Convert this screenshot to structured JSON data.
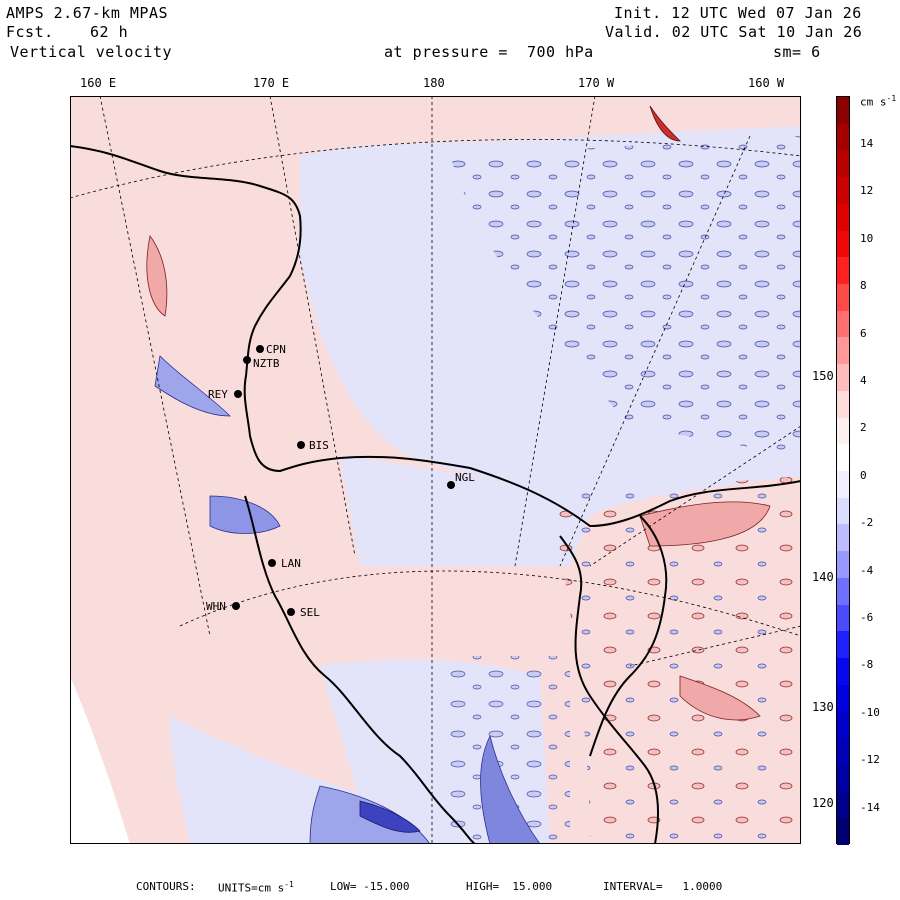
{
  "header": {
    "model": "AMPS 2.67-km MPAS",
    "fcst_label": "Fcst.",
    "fcst_value": "62 h",
    "variable": "Vertical velocity",
    "init": "Init. 12 UTC Wed 07 Jan 26",
    "valid": "Valid. 02 UTC Sat 10 Jan 26",
    "pressure_text": "at pressure =  700 hPa",
    "smoothing": "sm= 6"
  },
  "lon_labels": [
    "160 E",
    "170 E",
    "180",
    "170 W",
    "160 W"
  ],
  "lat_labels": [
    "150 W",
    "140 W",
    "130 W",
    "120 W"
  ],
  "colorbar": {
    "unit_label": "cm s",
    "unit_exp": "-1",
    "ticks": [
      "14",
      "12",
      "10",
      "8",
      "6",
      "4",
      "2",
      "0",
      "-2",
      "-4",
      "-6",
      "-8",
      "-10",
      "-12",
      "-14"
    ],
    "colors": [
      "#8b0000",
      "#a50000",
      "#b80000",
      "#cc0000",
      "#e00000",
      "#f00808",
      "#ff2020",
      "#ff4a4a",
      "#ff7070",
      "#ff9898",
      "#ffbcbc",
      "#ffdcdc",
      "#fff0f0",
      "#ffffff",
      "#f0f0ff",
      "#dcdcff",
      "#bcbcff",
      "#9898ff",
      "#7070ff",
      "#4a4aff",
      "#2020ff",
      "#0808f0",
      "#0000e0",
      "#0000cc",
      "#0000b8",
      "#0000a5",
      "#00008b",
      "#000070"
    ]
  },
  "stations": [
    {
      "id": "CPN"
    },
    {
      "id": "NZTB"
    },
    {
      "id": "REY"
    },
    {
      "id": "BIS"
    },
    {
      "id": "NGL"
    },
    {
      "id": "LAN"
    },
    {
      "id": "WHN"
    },
    {
      "id": "SEL"
    }
  ],
  "footer": {
    "contours": "CONTOURS:",
    "units": "UNITS=cm s",
    "units_exp": "-1",
    "low": "LOW= -15.000",
    "high": "HIGH=  15.000",
    "interval": "INTERVAL=   1.0000"
  },
  "palette": {
    "pos_light": "#f9dcdc",
    "neg_light": "#e3e4f9",
    "pos_mid": "#f0a8a8",
    "neg_mid": "#9fa5ea",
    "neg_strong": "#3c42c0",
    "pos_strong": "#c83030"
  }
}
